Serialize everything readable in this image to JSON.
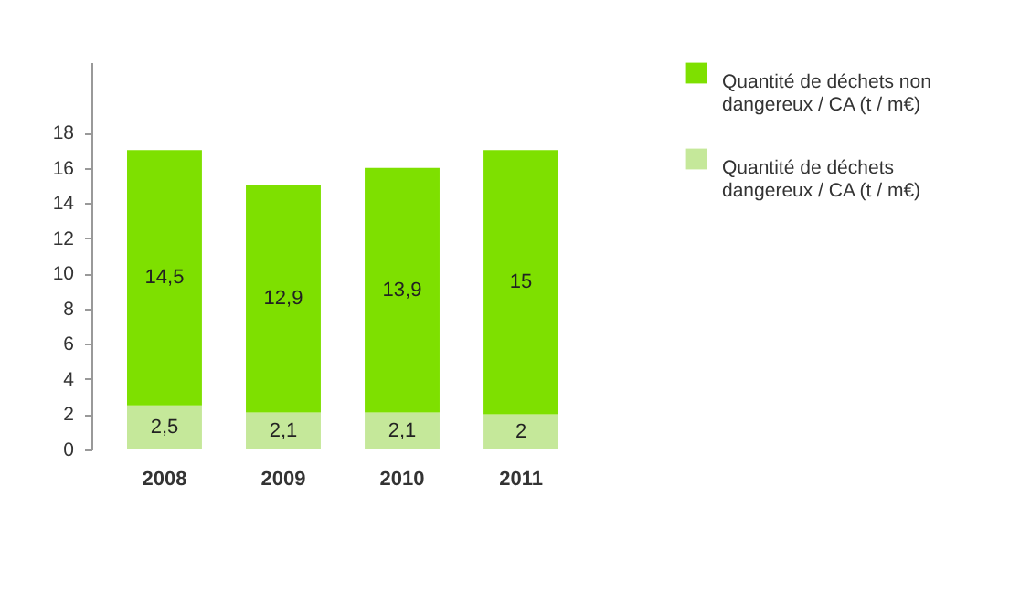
{
  "chart_data": {
    "type": "bar",
    "stacked": true,
    "categories": [
      "2008",
      "2009",
      "2010",
      "2011"
    ],
    "series": [
      {
        "name": "Quantité de déchets dangereux / CA (t / m€)",
        "color": "#c5e89a",
        "values": [
          2.5,
          2.1,
          2.1,
          2
        ],
        "value_labels": [
          "2,5",
          "2,1",
          "2,1",
          "2"
        ]
      },
      {
        "name": "Quantité de déchets non dangereux / CA (t / m€)",
        "color": "#7ee000",
        "values": [
          14.5,
          12.9,
          13.9,
          15
        ],
        "value_labels": [
          "14,5",
          "12,9",
          "13,9",
          "15"
        ]
      }
    ],
    "ylim": [
      0,
      22
    ],
    "yticks": [
      0,
      2,
      4,
      6,
      8,
      10,
      12,
      14,
      16,
      18
    ],
    "grid": false,
    "legend": "right"
  }
}
